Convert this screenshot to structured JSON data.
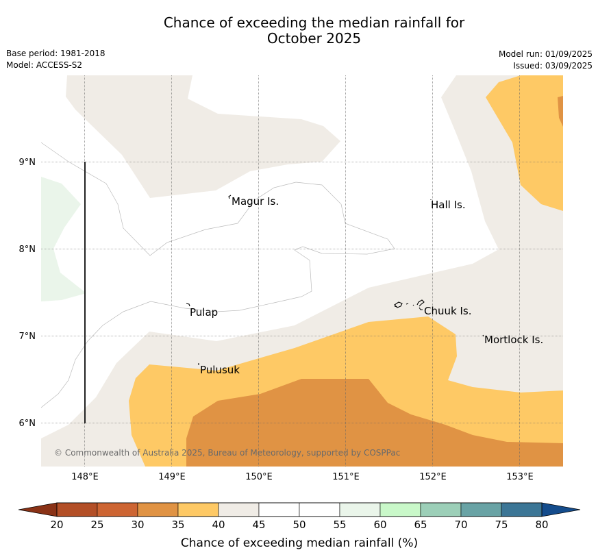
{
  "title_line1": "Chance of exceeding the median rainfall for",
  "title_line2": "October 2025",
  "base_period": "Base period: 1981-2018",
  "model": "Model: ACCESS-S2",
  "model_run": "Model run: 01/09/2025",
  "issued": "Issued: 03/09/2025",
  "map": {
    "lat_ticks": [
      "9°N",
      "8°N",
      "7°N",
      "6°N"
    ],
    "lon_ticks": [
      "148°E",
      "149°E",
      "150°E",
      "151°E",
      "152°E",
      "153°E"
    ],
    "places": [
      {
        "name": "Magur Is."
      },
      {
        "name": "Hall Is."
      },
      {
        "name": "Pulap"
      },
      {
        "name": "Chuuk Is."
      },
      {
        "name": "Mortlock Is."
      },
      {
        "name": "Pulusuk"
      }
    ],
    "copyright": "© Commonwealth of Australia 2025, Bureau of Meteorology, supported by COSPPac",
    "colors": {
      "c25_30": "#cd6133",
      "c30_35": "#e09344",
      "c35_40": "#fec965",
      "c40_45": "#f0ece6",
      "c55_60": "#eaf5ea"
    }
  },
  "colorbar": {
    "label": "Chance of exceeding median rainfall (%)",
    "ticks": [
      "20",
      "25",
      "30",
      "35",
      "40",
      "45",
      "50",
      "55",
      "60",
      "65",
      "70",
      "75",
      "80"
    ],
    "colors": [
      "#b34f27",
      "#cd6533",
      "#e09344",
      "#fec965",
      "#f0ece6",
      "#ffffff",
      "#ffffff",
      "#eaf5ea",
      "#c9f8c9",
      "#9ccfb8",
      "#69a3a5",
      "#3c7696"
    ],
    "low_color": "#8a3216",
    "high_color": "#144c8c"
  }
}
